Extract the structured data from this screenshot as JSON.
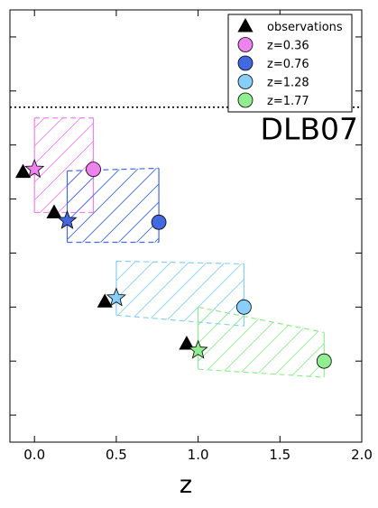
{
  "chart_data": {
    "type": "scatter",
    "xlabel": "z",
    "ylabel": "",
    "xlim": [
      -0.15,
      2.0
    ],
    "ylim": [
      0,
      8
    ],
    "x_ticks": [
      0.0,
      0.5,
      1.0,
      1.5,
      2.0
    ],
    "x_tick_labels": [
      "0.0",
      "0.5",
      "1.0",
      "1.5",
      "2.0"
    ],
    "y_ticks": [
      0.5,
      1.5,
      2.5,
      3.5,
      4.5,
      5.5,
      6.5,
      7.5
    ],
    "show_y_tick_labels": false,
    "grid": false,
    "reference_line": {
      "y": 6.2,
      "style": "dotted",
      "color": "#000000"
    },
    "annotation": {
      "text": "DLB07",
      "x": 1.38,
      "y": 5.6
    },
    "legend": {
      "placement": "top-right",
      "entries": [
        {
          "label": "observations",
          "marker": "triangle",
          "color": "#000000"
        },
        {
          "label": "z=0.36",
          "marker": "circle",
          "color": "#ee82ee"
        },
        {
          "label": "z=0.76",
          "marker": "circle",
          "color": "#4169e1"
        },
        {
          "label": "z=1.28",
          "marker": "circle",
          "color": "#87cefa"
        },
        {
          "label": "z=1.77",
          "marker": "circle",
          "color": "#90ee90"
        }
      ]
    },
    "series": [
      {
        "name": "z=0.36",
        "color": "#ee82ee",
        "observation": {
          "x": -0.07,
          "y": 5.0
        },
        "star": {
          "x": 0.0,
          "y": 5.05
        },
        "model": {
          "x": 0.36,
          "y": 5.05
        },
        "band": {
          "x": [
            0.0,
            0.36
          ],
          "top": [
            6.0,
            6.0
          ],
          "bottom": [
            4.25,
            4.25
          ]
        }
      },
      {
        "name": "z=0.76",
        "color": "#4169e1",
        "observation": {
          "x": 0.12,
          "y": 4.25
        },
        "star": {
          "x": 0.2,
          "y": 4.1
        },
        "model": {
          "x": 0.76,
          "y": 4.07
        },
        "band": {
          "x": [
            0.2,
            0.76
          ],
          "top": [
            5.02,
            5.07
          ],
          "bottom": [
            3.7,
            3.7
          ]
        }
      },
      {
        "name": "z=1.28",
        "color": "#87cefa",
        "observation": {
          "x": 0.43,
          "y": 2.6
        },
        "star": {
          "x": 0.5,
          "y": 2.67
        },
        "model": {
          "x": 1.28,
          "y": 2.5
        },
        "band": {
          "x": [
            0.5,
            1.28
          ],
          "top": [
            3.35,
            3.3
          ],
          "bottom": [
            2.35,
            2.15
          ]
        }
      },
      {
        "name": "z=1.77",
        "color": "#90ee90",
        "observation": {
          "x": 0.93,
          "y": 1.82
        },
        "star": {
          "x": 1.0,
          "y": 1.7
        },
        "model": {
          "x": 1.77,
          "y": 1.5
        },
        "band": {
          "x": [
            1.0,
            1.77
          ],
          "top": [
            2.5,
            2.03
          ],
          "bottom": [
            1.35,
            1.2
          ]
        }
      }
    ]
  }
}
